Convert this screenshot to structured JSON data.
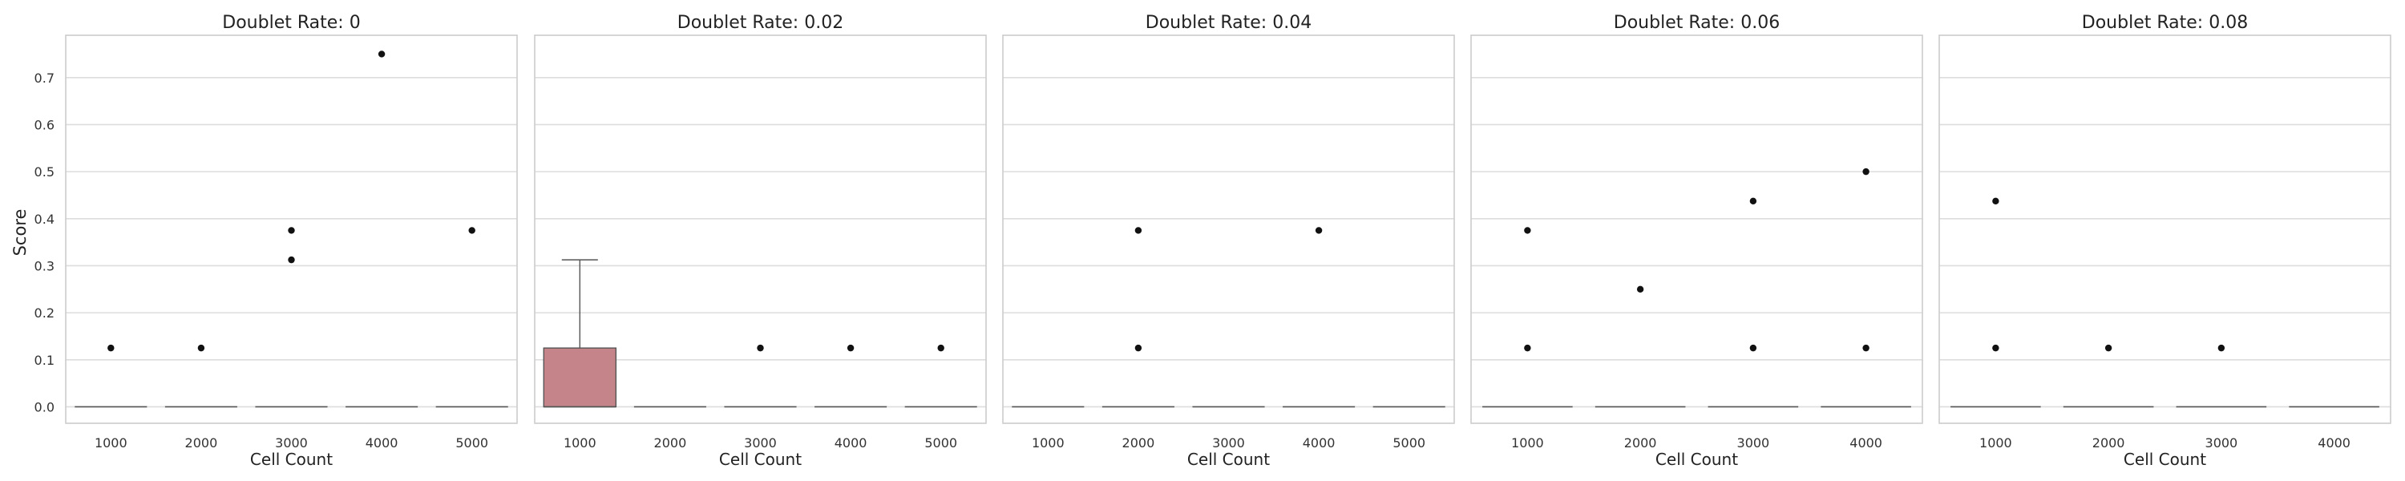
{
  "chart_data": {
    "type": "box",
    "ylabel": "Score",
    "ylim": [
      -0.035,
      0.79
    ],
    "yticks": [
      0.0,
      0.1,
      0.2,
      0.3,
      0.4,
      0.5,
      0.6,
      0.7
    ],
    "ytick_labels": [
      "0.0",
      "0.1",
      "0.2",
      "0.3",
      "0.4",
      "0.5",
      "0.6",
      "0.7"
    ],
    "grid": "horizontal",
    "box_color": "#c4848a",
    "point_color": "#111111",
    "grid_color": "#dddddd",
    "panels": [
      {
        "title": "Doublet Rate: 0",
        "xlabel": "Cell Count",
        "categories": [
          "1000",
          "2000",
          "3000",
          "4000",
          "5000"
        ],
        "boxes": [
          {
            "q1": 0,
            "median": 0,
            "q3": 0,
            "whisker_low": 0,
            "whisker_high": 0,
            "outliers": [
              0.125
            ]
          },
          {
            "q1": 0,
            "median": 0,
            "q3": 0,
            "whisker_low": 0,
            "whisker_high": 0,
            "outliers": [
              0.125
            ]
          },
          {
            "q1": 0,
            "median": 0,
            "q3": 0,
            "whisker_low": 0,
            "whisker_high": 0,
            "outliers": [
              0.3125,
              0.375
            ]
          },
          {
            "q1": 0,
            "median": 0,
            "q3": 0,
            "whisker_low": 0,
            "whisker_high": 0,
            "outliers": [
              0.75
            ]
          },
          {
            "q1": 0,
            "median": 0,
            "q3": 0,
            "whisker_low": 0,
            "whisker_high": 0,
            "outliers": [
              0.375
            ]
          }
        ]
      },
      {
        "title": "Doublet Rate: 0.02",
        "xlabel": "Cell Count",
        "categories": [
          "1000",
          "2000",
          "3000",
          "4000",
          "5000"
        ],
        "boxes": [
          {
            "q1": 0,
            "median": 0,
            "q3": 0.125,
            "whisker_low": 0,
            "whisker_high": 0.3125,
            "outliers": []
          },
          {
            "q1": 0,
            "median": 0,
            "q3": 0,
            "whisker_low": 0,
            "whisker_high": 0,
            "outliers": []
          },
          {
            "q1": 0,
            "median": 0,
            "q3": 0,
            "whisker_low": 0,
            "whisker_high": 0,
            "outliers": [
              0.125
            ]
          },
          {
            "q1": 0,
            "median": 0,
            "q3": 0,
            "whisker_low": 0,
            "whisker_high": 0,
            "outliers": [
              0.125
            ]
          },
          {
            "q1": 0,
            "median": 0,
            "q3": 0,
            "whisker_low": 0,
            "whisker_high": 0,
            "outliers": [
              0.125
            ]
          }
        ]
      },
      {
        "title": "Doublet Rate: 0.04",
        "xlabel": "Cell Count",
        "categories": [
          "1000",
          "2000",
          "3000",
          "4000",
          "5000"
        ],
        "boxes": [
          {
            "q1": 0,
            "median": 0,
            "q3": 0,
            "whisker_low": 0,
            "whisker_high": 0,
            "outliers": []
          },
          {
            "q1": 0,
            "median": 0,
            "q3": 0,
            "whisker_low": 0,
            "whisker_high": 0,
            "outliers": [
              0.125,
              0.375
            ]
          },
          {
            "q1": 0,
            "median": 0,
            "q3": 0,
            "whisker_low": 0,
            "whisker_high": 0,
            "outliers": []
          },
          {
            "q1": 0,
            "median": 0,
            "q3": 0,
            "whisker_low": 0,
            "whisker_high": 0,
            "outliers": [
              0.375
            ]
          },
          {
            "q1": 0,
            "median": 0,
            "q3": 0,
            "whisker_low": 0,
            "whisker_high": 0,
            "outliers": []
          }
        ]
      },
      {
        "title": "Doublet Rate: 0.06",
        "xlabel": "Cell Count",
        "categories": [
          "1000",
          "2000",
          "3000",
          "4000"
        ],
        "boxes": [
          {
            "q1": 0,
            "median": 0,
            "q3": 0,
            "whisker_low": 0,
            "whisker_high": 0,
            "outliers": [
              0.125,
              0.375
            ]
          },
          {
            "q1": 0,
            "median": 0,
            "q3": 0,
            "whisker_low": 0,
            "whisker_high": 0,
            "outliers": [
              0.25
            ]
          },
          {
            "q1": 0,
            "median": 0,
            "q3": 0,
            "whisker_low": 0,
            "whisker_high": 0,
            "outliers": [
              0.125,
              0.4375
            ]
          },
          {
            "q1": 0,
            "median": 0,
            "q3": 0,
            "whisker_low": 0,
            "whisker_high": 0,
            "outliers": [
              0.125,
              0.5
            ]
          }
        ]
      },
      {
        "title": "Doublet Rate: 0.08",
        "xlabel": "Cell Count",
        "categories": [
          "1000",
          "2000",
          "3000",
          "4000"
        ],
        "boxes": [
          {
            "q1": 0,
            "median": 0,
            "q3": 0,
            "whisker_low": 0,
            "whisker_high": 0,
            "outliers": [
              0.125,
              0.4375
            ]
          },
          {
            "q1": 0,
            "median": 0,
            "q3": 0,
            "whisker_low": 0,
            "whisker_high": 0,
            "outliers": [
              0.125
            ]
          },
          {
            "q1": 0,
            "median": 0,
            "q3": 0,
            "whisker_low": 0,
            "whisker_high": 0,
            "outliers": [
              0.125
            ]
          },
          {
            "q1": 0,
            "median": 0,
            "q3": 0,
            "whisker_low": 0,
            "whisker_high": 0,
            "outliers": []
          }
        ]
      }
    ]
  }
}
